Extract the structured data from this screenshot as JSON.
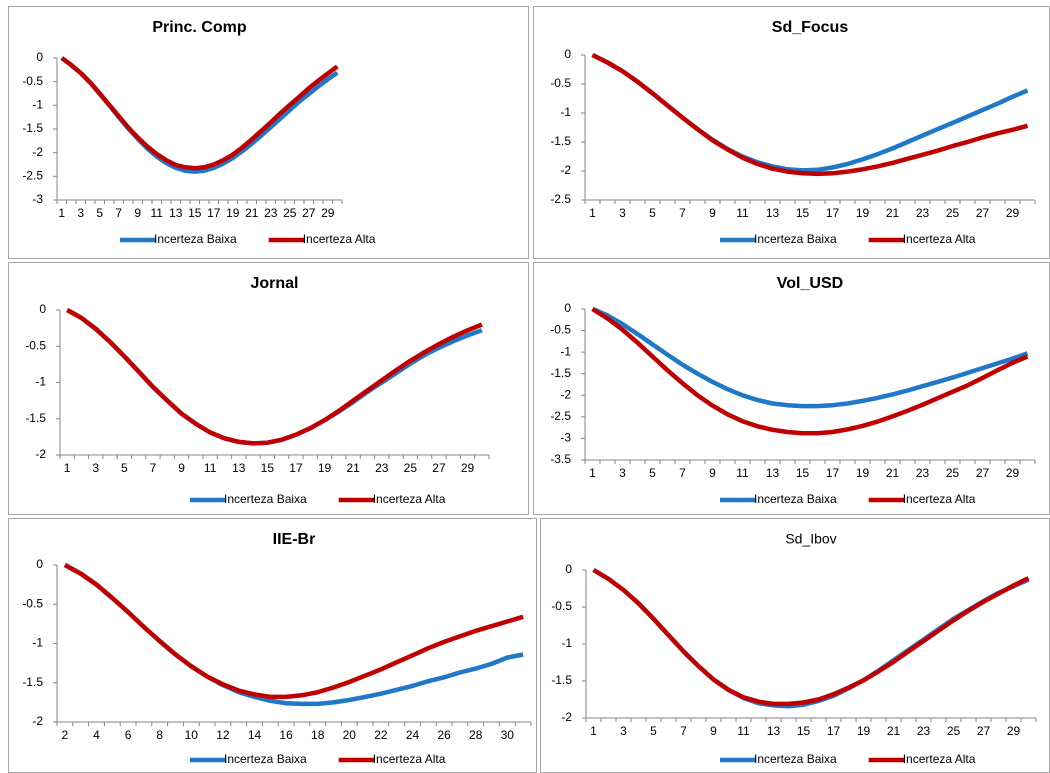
{
  "chart_data": [
    {
      "type": "line",
      "title": "Princ. Comp",
      "categories": [
        "1",
        null,
        "3",
        null,
        "5",
        null,
        "7",
        null,
        "9",
        null,
        "11",
        null,
        "13",
        null,
        "15",
        null,
        "17",
        null,
        "19",
        null,
        "21",
        null,
        "23",
        null,
        "25",
        null,
        "27",
        null,
        "29",
        null
      ],
      "series": [
        {
          "name": "Incerteza Baixa",
          "color": "#1f78c8",
          "values": [
            0,
            -0.15,
            -0.32,
            -0.52,
            -0.76,
            -1.0,
            -1.25,
            -1.49,
            -1.71,
            -1.91,
            -2.08,
            -2.22,
            -2.32,
            -2.38,
            -2.4,
            -2.38,
            -2.32,
            -2.23,
            -2.11,
            -1.97,
            -1.81,
            -1.64,
            -1.46,
            -1.28,
            -1.1,
            -0.92,
            -0.76,
            -0.6,
            -0.45,
            -0.31
          ]
        },
        {
          "name": "Incerteza Alta",
          "color": "#c00000",
          "values": [
            0,
            -0.15,
            -0.32,
            -0.52,
            -0.75,
            -0.99,
            -1.23,
            -1.47,
            -1.68,
            -1.87,
            -2.03,
            -2.16,
            -2.26,
            -2.31,
            -2.33,
            -2.31,
            -2.25,
            -2.16,
            -2.04,
            -1.89,
            -1.72,
            -1.54,
            -1.36,
            -1.17,
            -0.99,
            -0.82,
            -0.64,
            -0.48,
            -0.33,
            -0.18
          ]
        }
      ],
      "ylim": [
        -3,
        0
      ],
      "yticks": [
        0,
        -0.5,
        -1,
        -1.5,
        -2,
        -2.5,
        -3
      ]
    },
    {
      "type": "line",
      "title": "Sd_Focus",
      "categories": [
        "1",
        null,
        "3",
        null,
        "5",
        null,
        "7",
        null,
        "9",
        null,
        "11",
        null,
        "13",
        null,
        "15",
        null,
        "17",
        null,
        "19",
        null,
        "21",
        null,
        "23",
        null,
        "25",
        null,
        "27",
        null,
        "29",
        null
      ],
      "series": [
        {
          "name": "Incerteza Baixa",
          "color": "#1f78c8",
          "values": [
            0,
            -0.13,
            -0.28,
            -0.46,
            -0.66,
            -0.87,
            -1.08,
            -1.28,
            -1.46,
            -1.62,
            -1.75,
            -1.85,
            -1.92,
            -1.97,
            -1.99,
            -1.98,
            -1.94,
            -1.88,
            -1.8,
            -1.71,
            -1.61,
            -1.5,
            -1.39,
            -1.28,
            -1.17,
            -1.06,
            -0.95,
            -0.84,
            -0.72,
            -0.61
          ]
        },
        {
          "name": "Incerteza Alta",
          "color": "#c00000",
          "values": [
            0,
            -0.13,
            -0.28,
            -0.46,
            -0.66,
            -0.87,
            -1.08,
            -1.28,
            -1.47,
            -1.63,
            -1.77,
            -1.88,
            -1.96,
            -2.01,
            -2.04,
            -2.05,
            -2.04,
            -2.01,
            -1.97,
            -1.92,
            -1.86,
            -1.79,
            -1.72,
            -1.65,
            -1.57,
            -1.5,
            -1.42,
            -1.35,
            -1.29,
            -1.22
          ]
        }
      ],
      "ylim": [
        -2.5,
        0
      ],
      "yticks": [
        0,
        -0.5,
        -1,
        -1.5,
        -2,
        -2.5
      ]
    },
    {
      "type": "line",
      "title": "Jornal",
      "categories": [
        "1",
        null,
        "3",
        null,
        "5",
        null,
        "7",
        null,
        "9",
        null,
        "11",
        null,
        "13",
        null,
        "15",
        null,
        "17",
        null,
        "19",
        null,
        "21",
        null,
        "23",
        null,
        "25",
        null,
        "27",
        null,
        "29",
        null
      ],
      "series": [
        {
          "name": "Incerteza Baixa",
          "color": "#1f78c8",
          "values": [
            0,
            -0.11,
            -0.26,
            -0.44,
            -0.64,
            -0.85,
            -1.06,
            -1.25,
            -1.43,
            -1.57,
            -1.69,
            -1.77,
            -1.82,
            -1.84,
            -1.83,
            -1.79,
            -1.72,
            -1.63,
            -1.52,
            -1.4,
            -1.27,
            -1.13,
            -1.0,
            -0.87,
            -0.74,
            -0.62,
            -0.52,
            -0.43,
            -0.35,
            -0.28
          ]
        },
        {
          "name": "Incerteza Alta",
          "color": "#c00000",
          "values": [
            0,
            -0.11,
            -0.26,
            -0.44,
            -0.64,
            -0.85,
            -1.06,
            -1.25,
            -1.43,
            -1.57,
            -1.69,
            -1.77,
            -1.82,
            -1.84,
            -1.83,
            -1.79,
            -1.72,
            -1.63,
            -1.52,
            -1.39,
            -1.25,
            -1.11,
            -0.97,
            -0.83,
            -0.7,
            -0.58,
            -0.47,
            -0.37,
            -0.28,
            -0.2
          ]
        }
      ],
      "ylim": [
        -2,
        0
      ],
      "yticks": [
        0,
        -0.5,
        -1,
        -1.5,
        -2
      ]
    },
    {
      "type": "line",
      "title": "Vol_USD",
      "categories": [
        "1",
        null,
        "3",
        null,
        "5",
        null,
        "7",
        null,
        "9",
        null,
        "11",
        null,
        "13",
        null,
        "15",
        null,
        "17",
        null,
        "19",
        null,
        "21",
        null,
        "23",
        null,
        "25",
        null,
        "27",
        null,
        "29",
        null
      ],
      "series": [
        {
          "name": "Incerteza Baixa",
          "color": "#1f78c8",
          "values": [
            0,
            -0.15,
            -0.35,
            -0.58,
            -0.82,
            -1.06,
            -1.29,
            -1.5,
            -1.69,
            -1.86,
            -2.0,
            -2.11,
            -2.19,
            -2.23,
            -2.25,
            -2.25,
            -2.23,
            -2.19,
            -2.13,
            -2.06,
            -1.98,
            -1.89,
            -1.79,
            -1.69,
            -1.59,
            -1.48,
            -1.37,
            -1.26,
            -1.15,
            -1.03
          ]
        },
        {
          "name": "Incerteza Alta",
          "color": "#c00000",
          "values": [
            0,
            -0.22,
            -0.48,
            -0.78,
            -1.1,
            -1.42,
            -1.72,
            -2.0,
            -2.24,
            -2.44,
            -2.6,
            -2.72,
            -2.8,
            -2.85,
            -2.88,
            -2.88,
            -2.85,
            -2.79,
            -2.71,
            -2.61,
            -2.49,
            -2.36,
            -2.22,
            -2.07,
            -1.92,
            -1.77,
            -1.6,
            -1.42,
            -1.25,
            -1.1
          ]
        }
      ],
      "ylim": [
        -3.5,
        0
      ],
      "yticks": [
        0,
        -0.5,
        -1,
        -1.5,
        -2,
        -2.5,
        -3,
        -3.5
      ]
    },
    {
      "type": "line",
      "title": "IIE-Br",
      "categories": [
        "2",
        null,
        "4",
        null,
        "6",
        null,
        "8",
        null,
        "10",
        null,
        "12",
        null,
        "14",
        null,
        "16",
        null,
        "18",
        null,
        "20",
        null,
        "22",
        null,
        "24",
        null,
        "26",
        null,
        "28",
        null,
        "30",
        null
      ],
      "series": [
        {
          "name": "Incerteza Baixa",
          "color": "#1f78c8",
          "values": [
            0,
            -0.11,
            -0.25,
            -0.42,
            -0.6,
            -0.79,
            -0.97,
            -1.14,
            -1.29,
            -1.42,
            -1.53,
            -1.62,
            -1.68,
            -1.73,
            -1.76,
            -1.77,
            -1.77,
            -1.75,
            -1.72,
            -1.68,
            -1.64,
            -1.59,
            -1.54,
            -1.48,
            -1.43,
            -1.37,
            -1.32,
            -1.26,
            -1.18,
            -1.14
          ]
        },
        {
          "name": "Incerteza Alta",
          "color": "#c00000",
          "values": [
            0,
            -0.11,
            -0.25,
            -0.42,
            -0.6,
            -0.79,
            -0.97,
            -1.14,
            -1.29,
            -1.42,
            -1.52,
            -1.6,
            -1.65,
            -1.68,
            -1.68,
            -1.66,
            -1.62,
            -1.56,
            -1.49,
            -1.41,
            -1.33,
            -1.24,
            -1.15,
            -1.06,
            -0.98,
            -0.91,
            -0.84,
            -0.78,
            -0.72,
            -0.66
          ]
        }
      ],
      "ylim": [
        -2,
        0
      ],
      "yticks": [
        0,
        -0.5,
        -1,
        -1.5,
        -2
      ]
    },
    {
      "type": "line",
      "title": "Sd_Ibov",
      "categories": [
        "1",
        null,
        "3",
        null,
        "5",
        null,
        "7",
        null,
        "9",
        null,
        "11",
        null,
        "13",
        null,
        "15",
        null,
        "17",
        null,
        "19",
        null,
        "21",
        null,
        "23",
        null,
        "25",
        null,
        "27",
        null,
        "29",
        null
      ],
      "series": [
        {
          "name": "Incerteza Baixa",
          "color": "#1f78c8",
          "values": [
            0,
            -0.12,
            -0.27,
            -0.45,
            -0.66,
            -0.88,
            -1.1,
            -1.3,
            -1.48,
            -1.62,
            -1.73,
            -1.8,
            -1.83,
            -1.84,
            -1.82,
            -1.77,
            -1.7,
            -1.6,
            -1.49,
            -1.36,
            -1.22,
            -1.08,
            -0.94,
            -0.8,
            -0.66,
            -0.54,
            -0.42,
            -0.31,
            -0.22,
            -0.13
          ]
        },
        {
          "name": "Incerteza Alta",
          "color": "#c00000",
          "values": [
            0,
            -0.12,
            -0.27,
            -0.45,
            -0.66,
            -0.88,
            -1.1,
            -1.3,
            -1.48,
            -1.62,
            -1.72,
            -1.78,
            -1.81,
            -1.81,
            -1.79,
            -1.75,
            -1.68,
            -1.59,
            -1.49,
            -1.37,
            -1.24,
            -1.1,
            -0.96,
            -0.82,
            -0.68,
            -0.55,
            -0.43,
            -0.32,
            -0.21,
            -0.11
          ]
        }
      ],
      "ylim": [
        -2,
        0
      ],
      "yticks": [
        0,
        -0.5,
        -1,
        -1.5,
        -2
      ]
    }
  ]
}
